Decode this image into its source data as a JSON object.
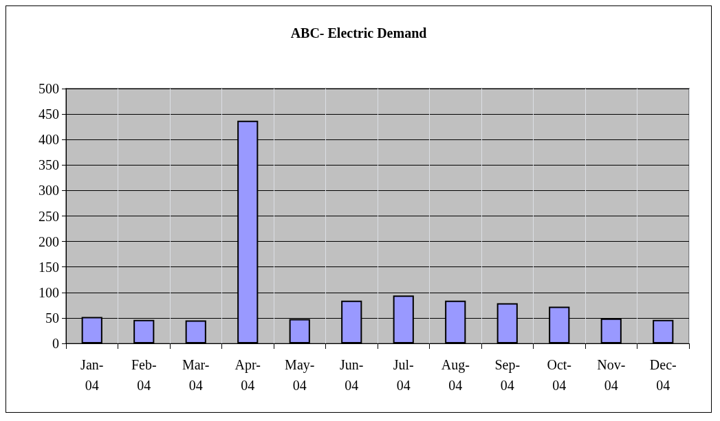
{
  "chart_data": {
    "type": "bar",
    "title": "ABC- Electric Demand",
    "categories": [
      "Jan-04",
      "Feb-04",
      "Mar-04",
      "Apr-04",
      "May-04",
      "Jun-04",
      "Jul-04",
      "Aug-04",
      "Sep-04",
      "Oct-04",
      "Nov-04",
      "Dec-04"
    ],
    "values": [
      52,
      46,
      45,
      437,
      48,
      84,
      94,
      84,
      79,
      72,
      49,
      46
    ],
    "color": "#9999ff",
    "ylim": [
      0,
      500
    ],
    "yticks": [
      0,
      50,
      100,
      150,
      200,
      250,
      300,
      350,
      400,
      450,
      500
    ],
    "grid": true
  }
}
